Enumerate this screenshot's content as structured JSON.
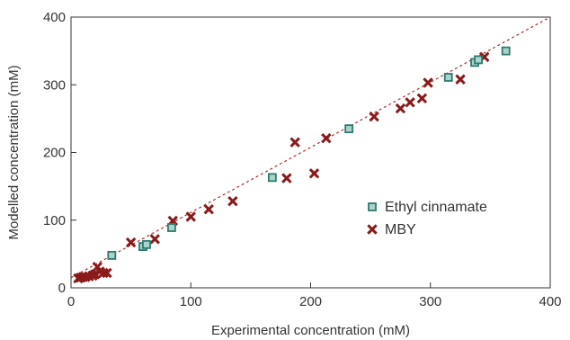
{
  "chart_data": {
    "type": "scatter",
    "xlabel": "Experimental concentration (mM)",
    "ylabel": "Modelled concentration (mM)",
    "xlim": [
      0,
      400
    ],
    "ylim": [
      0,
      400
    ],
    "xticks": [
      "0",
      "100",
      "200",
      "300",
      "400"
    ],
    "yticks": [
      "0",
      "100",
      "200",
      "300",
      "400"
    ],
    "grid": false,
    "legend_position": "right",
    "reference_line": {
      "style": "dashed",
      "color": "#b03030",
      "x": [
        0,
        400
      ],
      "y": [
        15,
        400
      ]
    },
    "series": [
      {
        "name": "Ethyl cinnamate",
        "marker": "square",
        "color": "#2f7a6e",
        "x": [
          34,
          60,
          63,
          84,
          168,
          232,
          315,
          337,
          340,
          363
        ],
        "y": [
          48,
          61,
          64,
          89,
          163,
          235,
          311,
          333,
          337,
          350
        ]
      },
      {
        "name": "MBY",
        "marker": "x",
        "color": "#8b1a1a",
        "x": [
          6,
          8,
          10,
          12,
          15,
          18,
          20,
          22,
          24,
          27,
          30,
          50,
          70,
          85,
          100,
          115,
          135,
          180,
          187,
          203,
          213,
          253,
          275,
          283,
          293,
          298,
          325,
          345
        ],
        "y": [
          14,
          15,
          16,
          16,
          17,
          18,
          20,
          31,
          24,
          22,
          22,
          67,
          72,
          99,
          105,
          116,
          128,
          162,
          215,
          169,
          221,
          253,
          265,
          274,
          280,
          303,
          308,
          341
        ]
      }
    ]
  }
}
